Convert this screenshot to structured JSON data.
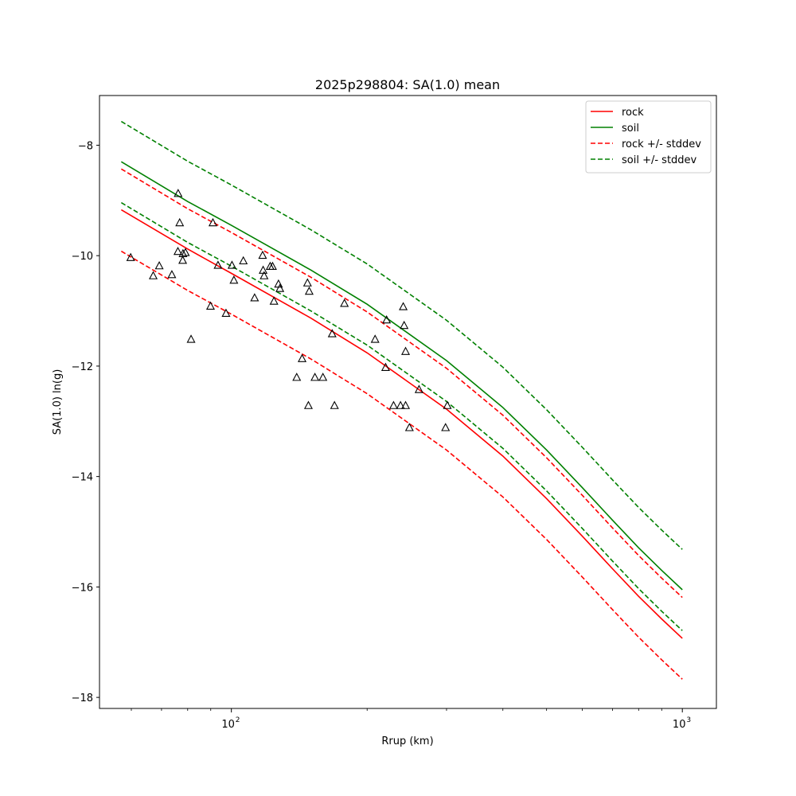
{
  "chart_data": {
    "type": "scatter",
    "title": "2025p298804: SA(1.0) mean",
    "xlabel": "Rrup (km)",
    "ylabel": "SA(1.0) ln(g)",
    "x_scale": "log",
    "xlim": [
      51,
      1190
    ],
    "ylim": [
      -18.2,
      -7.1
    ],
    "x_ticks": [
      {
        "value": 100,
        "label": "10",
        "exp": "2"
      },
      {
        "value": 1000,
        "label": "10",
        "exp": "3"
      }
    ],
    "y_ticks": [
      -18,
      -16,
      -14,
      -12,
      -10,
      -8
    ],
    "y_tick_labels": [
      "−18",
      "−16",
      "−14",
      "−12",
      "−10",
      "−8"
    ],
    "legend_position": "top-right",
    "series": [
      {
        "name": "rock",
        "color": "#ff0000",
        "dashed": false,
        "x": [
          57,
          80,
          100,
          150,
          200,
          300,
          400,
          500,
          600,
          700,
          800,
          900,
          1000
        ],
        "y": [
          -9.17,
          -9.88,
          -10.32,
          -11.13,
          -11.76,
          -12.78,
          -13.63,
          -14.4,
          -15.08,
          -15.67,
          -16.17,
          -16.58,
          -16.93
        ]
      },
      {
        "name": "soil",
        "color": "#008000",
        "dashed": false,
        "x": [
          57,
          80,
          100,
          150,
          200,
          300,
          400,
          500,
          600,
          700,
          800,
          900,
          1000
        ],
        "y": [
          -8.3,
          -9.02,
          -9.45,
          -10.26,
          -10.88,
          -11.9,
          -12.75,
          -13.52,
          -14.2,
          -14.79,
          -15.29,
          -15.7,
          -16.05
        ]
      },
      {
        "name": "rock +/- stddev",
        "color": "#ff0000",
        "dashed": true,
        "x": [
          57,
          80,
          100,
          150,
          200,
          300,
          400,
          500,
          600,
          700,
          800,
          900,
          1000
        ],
        "y": [
          -8.43,
          -9.15,
          -9.58,
          -10.39,
          -11.02,
          -12.04,
          -12.89,
          -13.66,
          -14.34,
          -14.93,
          -15.43,
          -15.84,
          -16.19
        ]
      },
      {
        "name": "rock +/- stddev",
        "color": "#ff0000",
        "dashed": true,
        "legend": false,
        "x": [
          57,
          80,
          100,
          150,
          200,
          300,
          400,
          500,
          600,
          700,
          800,
          900,
          1000
        ],
        "y": [
          -9.92,
          -10.63,
          -11.06,
          -11.87,
          -12.5,
          -13.52,
          -14.37,
          -15.14,
          -15.82,
          -16.41,
          -16.91,
          -17.32,
          -17.67
        ]
      },
      {
        "name": "soil +/- stddev",
        "color": "#008000",
        "dashed": true,
        "x": [
          57,
          80,
          100,
          150,
          200,
          300,
          400,
          500,
          600,
          700,
          800,
          900,
          1000
        ],
        "y": [
          -7.57,
          -8.29,
          -8.72,
          -9.53,
          -10.15,
          -11.17,
          -12.02,
          -12.79,
          -13.47,
          -14.06,
          -14.56,
          -14.97,
          -15.32
        ]
      },
      {
        "name": "soil +/- stddev",
        "color": "#008000",
        "dashed": true,
        "legend": false,
        "x": [
          57,
          80,
          100,
          150,
          200,
          300,
          400,
          500,
          600,
          700,
          800,
          900,
          1000
        ],
        "y": [
          -9.04,
          -9.76,
          -10.19,
          -11.0,
          -11.62,
          -12.64,
          -13.49,
          -14.26,
          -14.94,
          -15.53,
          -16.03,
          -16.44,
          -16.79
        ]
      }
    ],
    "observations": {
      "marker": "triangle",
      "x": [
        59.8,
        67.1,
        69.2,
        73.8,
        76.2,
        76.8,
        76.1,
        78.1,
        78.0,
        79.1,
        81.4,
        89.9,
        91.0,
        93.4,
        97.3,
        100.3,
        101.3,
        106.3,
        112.6,
        117.3,
        117.6,
        118.2,
        121.9,
        123.4,
        124.3,
        127.2,
        128.1,
        139.6,
        143.5,
        147.5,
        148.2,
        148.8,
        153.2,
        159.6,
        167.3,
        169.3,
        178.1,
        208.3,
        219.8,
        220.9,
        228.9,
        237.2,
        240.5,
        241.6,
        243.4,
        243.4,
        248.2,
        260.7,
        298.5,
        301.2
      ],
      "y": [
        -10.04,
        -10.37,
        -10.19,
        -10.35,
        -8.88,
        -9.41,
        -9.93,
        -9.97,
        -10.09,
        -9.95,
        -11.52,
        -10.92,
        -9.41,
        -10.18,
        -11.05,
        -10.18,
        -10.45,
        -10.1,
        -10.77,
        -10.0,
        -10.27,
        -10.37,
        -10.2,
        -10.2,
        -10.83,
        -10.52,
        -10.6,
        -12.21,
        -11.87,
        -10.5,
        -12.72,
        -10.65,
        -12.21,
        -12.21,
        -11.42,
        -12.72,
        -10.87,
        -11.52,
        -12.03,
        -11.17,
        -12.72,
        -12.72,
        -10.93,
        -11.27,
        -11.74,
        -12.72,
        -13.12,
        -12.43,
        -13.12,
        -12.72
      ]
    }
  }
}
